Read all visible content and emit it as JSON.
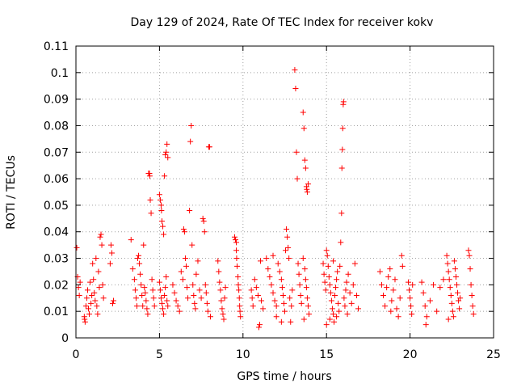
{
  "chart_data": {
    "type": "scatter",
    "title": "Day 129 of 2024, Rate Of TEC Index for receiver kokv",
    "xlabel": "GPS time / hours",
    "ylabel": "ROTI / TECUs",
    "xlim": [
      0,
      25
    ],
    "ylim": [
      0,
      0.11
    ],
    "xticks": [
      0,
      5,
      10,
      15,
      20,
      25
    ],
    "xtick_labels": [
      "0",
      "5",
      "10",
      "15",
      "20",
      "25"
    ],
    "yticks": [
      0,
      0.01,
      0.02,
      0.03,
      0.04,
      0.05,
      0.06,
      0.07,
      0.08,
      0.09,
      0.1,
      0.11
    ],
    "ytick_labels": [
      "0",
      "0.01",
      "0.02",
      "0.03",
      "0.04",
      "0.05",
      "0.06",
      "0.07",
      "0.08",
      "0.09",
      "0.1",
      "0.11"
    ],
    "grid": true,
    "marker": "+",
    "color": "#ff0000",
    "series": [
      {
        "name": "ROTI",
        "points": [
          [
            0.05,
            0.034
          ],
          [
            0.1,
            0.023
          ],
          [
            0.15,
            0.019
          ],
          [
            0.2,
            0.016
          ],
          [
            0.25,
            0.021
          ],
          [
            0.5,
            0.008
          ],
          [
            0.52,
            0.007
          ],
          [
            0.55,
            0.006
          ],
          [
            0.6,
            0.012
          ],
          [
            0.65,
            0.015
          ],
          [
            0.7,
            0.018
          ],
          [
            0.75,
            0.011
          ],
          [
            0.8,
            0.009
          ],
          [
            0.85,
            0.021
          ],
          [
            0.9,
            0.013
          ],
          [
            0.95,
            0.016
          ],
          [
            1.0,
            0.028
          ],
          [
            1.05,
            0.022
          ],
          [
            1.1,
            0.017
          ],
          [
            1.15,
            0.014
          ],
          [
            1.2,
            0.03
          ],
          [
            1.25,
            0.012
          ],
          [
            1.3,
            0.009
          ],
          [
            1.35,
            0.025
          ],
          [
            1.4,
            0.019
          ],
          [
            1.45,
            0.038
          ],
          [
            1.5,
            0.039
          ],
          [
            1.55,
            0.035
          ],
          [
            1.6,
            0.02
          ],
          [
            1.65,
            0.015
          ],
          [
            2.1,
            0.035
          ],
          [
            2.15,
            0.032
          ],
          [
            2.2,
            0.013
          ],
          [
            2.25,
            0.014
          ],
          [
            2.05,
            0.028
          ],
          [
            3.3,
            0.037
          ],
          [
            3.4,
            0.026
          ],
          [
            3.5,
            0.022
          ],
          [
            3.55,
            0.018
          ],
          [
            3.6,
            0.015
          ],
          [
            3.65,
            0.012
          ],
          [
            3.7,
            0.03
          ],
          [
            3.75,
            0.031
          ],
          [
            3.8,
            0.028
          ],
          [
            3.85,
            0.024
          ],
          [
            3.9,
            0.02
          ],
          [
            3.95,
            0.016
          ],
          [
            4.0,
            0.012
          ],
          [
            4.05,
            0.035
          ],
          [
            4.1,
            0.019
          ],
          [
            4.15,
            0.017
          ],
          [
            4.2,
            0.014
          ],
          [
            4.25,
            0.011
          ],
          [
            4.3,
            0.009
          ],
          [
            4.35,
            0.062
          ],
          [
            4.4,
            0.062
          ],
          [
            4.42,
            0.061
          ],
          [
            4.45,
            0.052
          ],
          [
            4.5,
            0.047
          ],
          [
            4.55,
            0.022
          ],
          [
            4.6,
            0.018
          ],
          [
            4.65,
            0.015
          ],
          [
            4.7,
            0.012
          ],
          [
            5.0,
            0.054
          ],
          [
            5.05,
            0.052
          ],
          [
            5.1,
            0.05
          ],
          [
            5.12,
            0.048
          ],
          [
            5.15,
            0.044
          ],
          [
            5.2,
            0.042
          ],
          [
            5.25,
            0.039
          ],
          [
            5.3,
            0.061
          ],
          [
            5.35,
            0.069
          ],
          [
            5.4,
            0.07
          ],
          [
            5.45,
            0.073
          ],
          [
            5.5,
            0.068
          ],
          [
            5.0,
            0.021
          ],
          [
            5.05,
            0.018
          ],
          [
            5.1,
            0.015
          ],
          [
            5.15,
            0.013
          ],
          [
            5.2,
            0.011
          ],
          [
            5.25,
            0.009
          ],
          [
            5.3,
            0.016
          ],
          [
            5.35,
            0.019
          ],
          [
            5.4,
            0.023
          ],
          [
            5.45,
            0.014
          ],
          [
            5.5,
            0.012
          ],
          [
            5.8,
            0.02
          ],
          [
            5.9,
            0.017
          ],
          [
            6.0,
            0.014
          ],
          [
            6.1,
            0.012
          ],
          [
            6.2,
            0.01
          ],
          [
            6.3,
            0.025
          ],
          [
            6.4,
            0.022
          ],
          [
            6.45,
            0.041
          ],
          [
            6.5,
            0.04
          ],
          [
            6.55,
            0.03
          ],
          [
            6.6,
            0.027
          ],
          [
            6.65,
            0.019
          ],
          [
            6.7,
            0.015
          ],
          [
            6.8,
            0.048
          ],
          [
            6.85,
            0.074
          ],
          [
            6.9,
            0.08
          ],
          [
            6.95,
            0.035
          ],
          [
            7.0,
            0.02
          ],
          [
            7.05,
            0.016
          ],
          [
            7.1,
            0.013
          ],
          [
            7.15,
            0.011
          ],
          [
            7.2,
            0.024
          ],
          [
            7.3,
            0.029
          ],
          [
            7.4,
            0.018
          ],
          [
            7.5,
            0.015
          ],
          [
            7.6,
            0.045
          ],
          [
            7.65,
            0.044
          ],
          [
            7.7,
            0.04
          ],
          [
            7.75,
            0.02
          ],
          [
            7.8,
            0.017
          ],
          [
            7.85,
            0.013
          ],
          [
            7.9,
            0.01
          ],
          [
            7.95,
            0.072
          ],
          [
            8.0,
            0.072
          ],
          [
            8.05,
            0.008
          ],
          [
            8.5,
            0.029
          ],
          [
            8.55,
            0.025
          ],
          [
            8.6,
            0.021
          ],
          [
            8.65,
            0.018
          ],
          [
            8.7,
            0.014
          ],
          [
            8.75,
            0.011
          ],
          [
            8.8,
            0.009
          ],
          [
            8.85,
            0.007
          ],
          [
            8.9,
            0.015
          ],
          [
            8.95,
            0.019
          ],
          [
            9.5,
            0.038
          ],
          [
            9.55,
            0.037
          ],
          [
            9.6,
            0.033
          ],
          [
            9.62,
            0.03
          ],
          [
            9.65,
            0.027
          ],
          [
            9.7,
            0.023
          ],
          [
            9.72,
            0.02
          ],
          [
            9.75,
            0.018
          ],
          [
            9.78,
            0.015
          ],
          [
            9.8,
            0.012
          ],
          [
            9.82,
            0.01
          ],
          [
            9.85,
            0.008
          ],
          [
            9.6,
            0.036
          ],
          [
            10.5,
            0.018
          ],
          [
            10.55,
            0.015
          ],
          [
            10.6,
            0.012
          ],
          [
            10.7,
            0.022
          ],
          [
            10.8,
            0.019
          ],
          [
            10.9,
            0.016
          ],
          [
            10.95,
            0.004
          ],
          [
            11.0,
            0.005
          ],
          [
            11.05,
            0.029
          ],
          [
            11.1,
            0.014
          ],
          [
            11.2,
            0.011
          ],
          [
            11.4,
            0.03
          ],
          [
            11.5,
            0.026
          ],
          [
            11.6,
            0.023
          ],
          [
            11.7,
            0.02
          ],
          [
            11.8,
            0.017
          ],
          [
            11.9,
            0.014
          ],
          [
            12.0,
            0.012
          ],
          [
            12.1,
            0.028
          ],
          [
            12.2,
            0.025
          ],
          [
            12.3,
            0.022
          ],
          [
            12.35,
            0.019
          ],
          [
            12.4,
            0.016
          ],
          [
            12.45,
            0.013
          ],
          [
            12.5,
            0.01
          ],
          [
            12.55,
            0.033
          ],
          [
            12.6,
            0.041
          ],
          [
            12.65,
            0.038
          ],
          [
            12.7,
            0.034
          ],
          [
            12.75,
            0.03
          ],
          [
            12.8,
            0.015
          ],
          [
            12.85,
            0.006
          ],
          [
            12.9,
            0.012
          ],
          [
            12.95,
            0.018
          ],
          [
            12.3,
            0.006
          ],
          [
            12.0,
            0.008
          ],
          [
            11.8,
            0.031
          ],
          [
            13.1,
            0.101
          ],
          [
            13.15,
            0.094
          ],
          [
            13.2,
            0.07
          ],
          [
            13.25,
            0.06
          ],
          [
            13.3,
            0.028
          ],
          [
            13.35,
            0.024
          ],
          [
            13.4,
            0.02
          ],
          [
            13.45,
            0.016
          ],
          [
            13.5,
            0.013
          ],
          [
            13.6,
            0.085
          ],
          [
            13.65,
            0.079
          ],
          [
            13.7,
            0.067
          ],
          [
            13.75,
            0.064
          ],
          [
            13.8,
            0.057
          ],
          [
            13.82,
            0.056
          ],
          [
            13.85,
            0.055
          ],
          [
            13.9,
            0.058
          ],
          [
            13.7,
            0.026
          ],
          [
            13.75,
            0.022
          ],
          [
            13.8,
            0.019
          ],
          [
            13.85,
            0.015
          ],
          [
            13.9,
            0.012
          ],
          [
            13.95,
            0.009
          ],
          [
            13.6,
            0.03
          ],
          [
            13.65,
            0.007
          ],
          [
            14.8,
            0.028
          ],
          [
            14.85,
            0.024
          ],
          [
            14.9,
            0.021
          ],
          [
            14.95,
            0.018
          ],
          [
            15.0,
            0.033
          ],
          [
            15.05,
            0.031
          ],
          [
            15.1,
            0.027
          ],
          [
            15.15,
            0.023
          ],
          [
            15.2,
            0.02
          ],
          [
            15.25,
            0.017
          ],
          [
            15.3,
            0.014
          ],
          [
            15.35,
            0.011
          ],
          [
            15.4,
            0.009
          ],
          [
            15.45,
            0.006
          ],
          [
            15.5,
            0.016
          ],
          [
            15.55,
            0.019
          ],
          [
            15.6,
            0.022
          ],
          [
            15.65,
            0.025
          ],
          [
            15.7,
            0.013
          ],
          [
            15.75,
            0.01
          ],
          [
            15.8,
            0.027
          ],
          [
            15.85,
            0.036
          ],
          [
            15.9,
            0.047
          ],
          [
            15.92,
            0.064
          ],
          [
            15.95,
            0.071
          ],
          [
            15.97,
            0.079
          ],
          [
            16.0,
            0.088
          ],
          [
            16.02,
            0.089
          ],
          [
            16.05,
            0.015
          ],
          [
            16.1,
            0.012
          ],
          [
            16.15,
            0.018
          ],
          [
            16.2,
            0.021
          ],
          [
            16.25,
            0.009
          ],
          [
            16.3,
            0.024
          ],
          [
            16.4,
            0.017
          ],
          [
            16.5,
            0.013
          ],
          [
            16.6,
            0.02
          ],
          [
            16.7,
            0.028
          ],
          [
            16.8,
            0.016
          ],
          [
            16.9,
            0.011
          ],
          [
            15.0,
            0.005
          ],
          [
            15.2,
            0.007
          ],
          [
            15.6,
            0.008
          ],
          [
            15.4,
            0.029
          ],
          [
            18.2,
            0.025
          ],
          [
            18.3,
            0.02
          ],
          [
            18.4,
            0.016
          ],
          [
            18.5,
            0.012
          ],
          [
            18.6,
            0.019
          ],
          [
            18.7,
            0.023
          ],
          [
            18.8,
            0.026
          ],
          [
            18.85,
            0.01
          ],
          [
            18.9,
            0.014
          ],
          [
            19.0,
            0.018
          ],
          [
            19.1,
            0.022
          ],
          [
            19.2,
            0.011
          ],
          [
            19.3,
            0.008
          ],
          [
            19.4,
            0.015
          ],
          [
            19.5,
            0.031
          ],
          [
            19.55,
            0.027
          ],
          [
            19.9,
            0.021
          ],
          [
            19.95,
            0.018
          ],
          [
            20.0,
            0.015
          ],
          [
            20.05,
            0.012
          ],
          [
            20.1,
            0.009
          ],
          [
            20.15,
            0.02
          ],
          [
            20.7,
            0.021
          ],
          [
            20.8,
            0.017
          ],
          [
            20.9,
            0.012
          ],
          [
            20.95,
            0.005
          ],
          [
            21.0,
            0.008
          ],
          [
            21.2,
            0.014
          ],
          [
            21.4,
            0.02
          ],
          [
            21.6,
            0.01
          ],
          [
            21.8,
            0.019
          ],
          [
            22.0,
            0.022
          ],
          [
            22.2,
            0.031
          ],
          [
            22.25,
            0.028
          ],
          [
            22.3,
            0.025
          ],
          [
            22.35,
            0.022
          ],
          [
            22.4,
            0.019
          ],
          [
            22.45,
            0.016
          ],
          [
            22.5,
            0.013
          ],
          [
            22.55,
            0.01
          ],
          [
            22.6,
            0.008
          ],
          [
            22.65,
            0.029
          ],
          [
            22.7,
            0.026
          ],
          [
            22.75,
            0.023
          ],
          [
            22.8,
            0.02
          ],
          [
            22.85,
            0.017
          ],
          [
            22.9,
            0.014
          ],
          [
            22.95,
            0.011
          ],
          [
            23.0,
            0.015
          ],
          [
            22.3,
            0.007
          ],
          [
            23.5,
            0.033
          ],
          [
            23.55,
            0.031
          ],
          [
            23.6,
            0.026
          ],
          [
            23.65,
            0.02
          ],
          [
            23.7,
            0.016
          ],
          [
            23.75,
            0.012
          ],
          [
            23.8,
            0.009
          ]
        ]
      }
    ]
  }
}
